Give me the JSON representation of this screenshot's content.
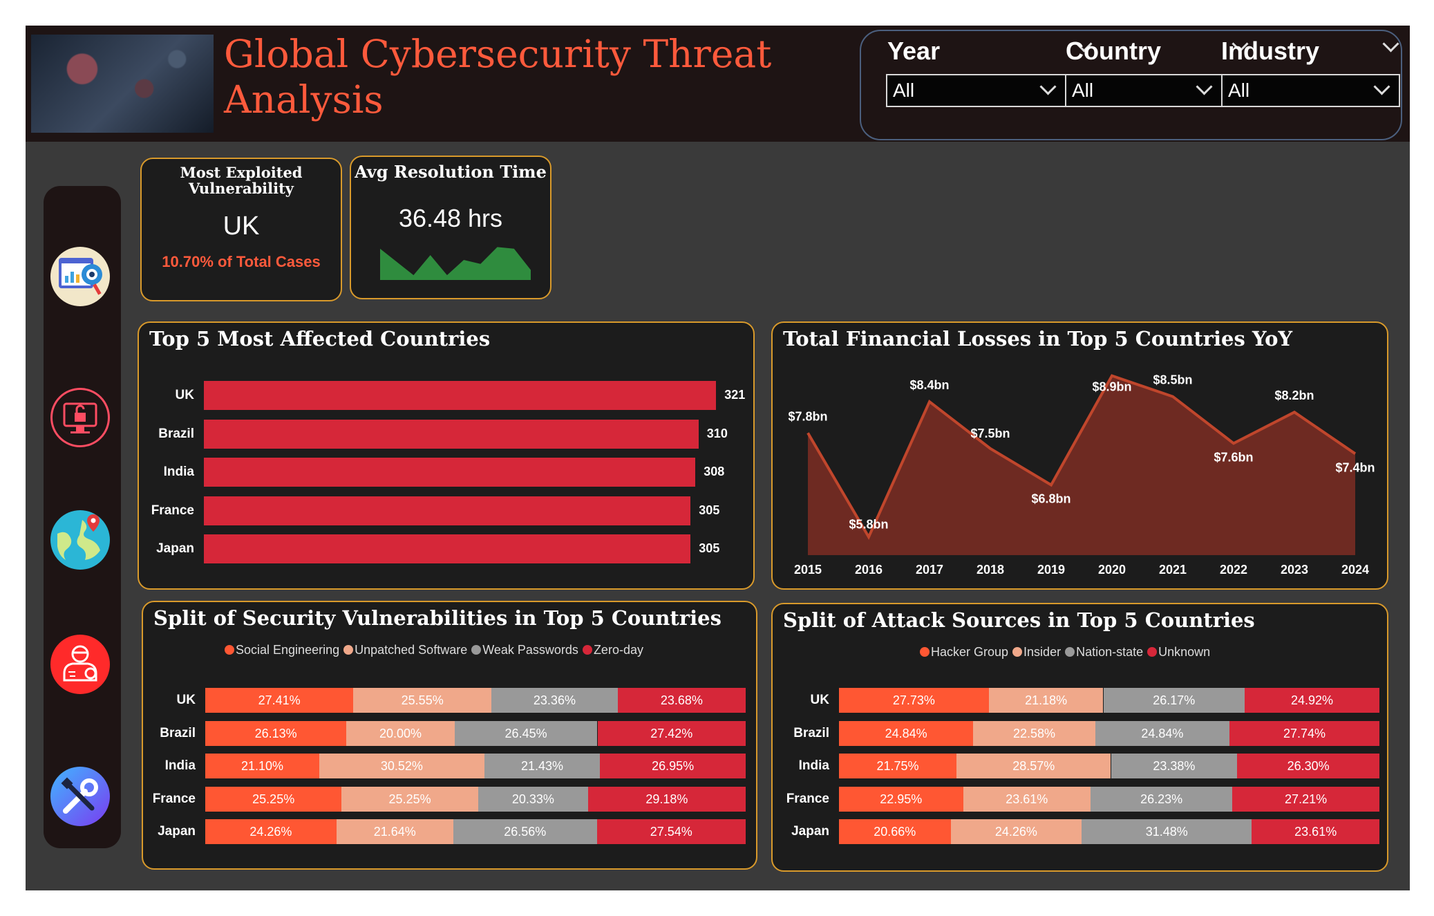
{
  "header": {
    "title_line1": "Global Cybersecurity Threat",
    "title_line2": "Analysis"
  },
  "filters": [
    {
      "label": "Year",
      "value": "All"
    },
    {
      "label": "Country",
      "value": "All"
    },
    {
      "label": "Industry",
      "value": "All"
    }
  ],
  "sidebar": {
    "items": [
      "dashboard-eye-icon",
      "monitor-lock-icon",
      "globe-pin-icon",
      "hacker-icon",
      "tools-icon"
    ]
  },
  "kpi1": {
    "title_line1": "Most Exploited",
    "title_line2": "Vulnerability",
    "value": "UK",
    "sub": "10.70% of Total Cases"
  },
  "kpi2": {
    "title": "Avg Resolution Time",
    "value": "36.48 hrs",
    "sparkline": [
      0.78,
      0.45,
      0.12,
      0.62,
      0.12,
      0.5,
      0.4,
      0.82,
      0.78,
      0.25
    ]
  },
  "colors": {
    "accent": "#ff5a3c",
    "card_border": "#d99a2b",
    "bar": "#d62739"
  },
  "top5": {
    "title": "Top 5 Most Affected Countries",
    "chart_data": {
      "type": "bar",
      "categories": [
        "UK",
        "Brazil",
        "India",
        "France",
        "Japan"
      ],
      "values": [
        321,
        310,
        308,
        305,
        305
      ]
    }
  },
  "losses": {
    "title": "Total Financial Losses in Top 5 Countries YoY",
    "chart_data": {
      "type": "area",
      "x": [
        "2015",
        "2016",
        "2017",
        "2018",
        "2019",
        "2020",
        "2021",
        "2022",
        "2023",
        "2024"
      ],
      "values": [
        7.8,
        5.8,
        8.4,
        7.5,
        6.8,
        8.9,
        8.5,
        7.6,
        8.2,
        7.4
      ],
      "labels": [
        "$7.8bn",
        "$5.8bn",
        "$8.4bn",
        "$7.5bn",
        "$6.8bn",
        "$8.9bn",
        "$8.5bn",
        "$7.6bn",
        "$8.2bn",
        "$7.4bn"
      ]
    }
  },
  "vuln": {
    "title": "Split of Security Vulnerabilities in Top 5 Countries",
    "chart_data": {
      "type": "bar",
      "stacked": true,
      "categories": [
        "UK",
        "Brazil",
        "India",
        "France",
        "Japan"
      ],
      "series": [
        {
          "name": "Social Engineering",
          "color": "#ff5733",
          "values": [
            "27.41%",
            "26.13%",
            "21.10%",
            "25.25%",
            "24.26%"
          ]
        },
        {
          "name": "Unpatched Software",
          "color": "#f0a88a",
          "values": [
            "25.55%",
            "20.00%",
            "30.52%",
            "25.25%",
            "21.64%"
          ]
        },
        {
          "name": "Weak Passwords",
          "color": "#999999",
          "values": [
            "23.36%",
            "26.45%",
            "21.43%",
            "20.33%",
            "26.56%"
          ]
        },
        {
          "name": "Zero-day",
          "color": "#d62739",
          "values": [
            "23.68%",
            "27.42%",
            "26.95%",
            "29.18%",
            "27.54%"
          ]
        }
      ]
    }
  },
  "attack": {
    "title": "Split of Attack Sources in Top 5 Countries",
    "chart_data": {
      "type": "bar",
      "stacked": true,
      "categories": [
        "UK",
        "Brazil",
        "India",
        "France",
        "Japan"
      ],
      "series": [
        {
          "name": "Hacker Group",
          "color": "#ff5733",
          "values": [
            "27.73%",
            "24.84%",
            "21.75%",
            "22.95%",
            "20.66%"
          ]
        },
        {
          "name": "Insider",
          "color": "#f0a88a",
          "values": [
            "21.18%",
            "22.58%",
            "28.57%",
            "23.61%",
            "24.26%"
          ]
        },
        {
          "name": "Nation-state",
          "color": "#999999",
          "values": [
            "26.17%",
            "24.84%",
            "23.38%",
            "26.23%",
            "31.48%"
          ]
        },
        {
          "name": "Unknown",
          "color": "#d62739",
          "values": [
            "24.92%",
            "27.74%",
            "26.30%",
            "27.21%",
            "23.61%"
          ]
        }
      ]
    }
  }
}
